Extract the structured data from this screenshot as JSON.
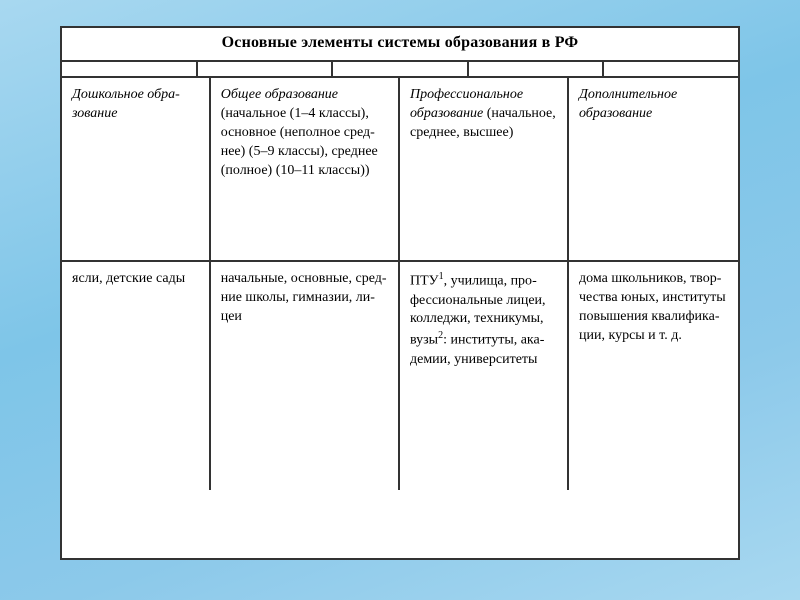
{
  "table": {
    "title": "Основные элементы системы образования в РФ",
    "columns": 4,
    "connector_segments": 5,
    "border_color": "#333333",
    "background_color": "#ffffff",
    "font_family": "Georgia, 'Times New Roman', serif",
    "title_fontsize": 16,
    "cell_fontsize": 14,
    "column_widths_pct": [
      22,
      28,
      25,
      25
    ],
    "row1": {
      "c1": {
        "italic": "Дошколь­ное обра­зование",
        "rest": ""
      },
      "c2": {
        "italic": "Общее образо­вание",
        "rest": " (началь­ное (1–4 клас­сы), основное (неполное сред­нее) (5–9 клас­сы), среднее (полное) (10–11 классы))"
      },
      "c3": {
        "italic": "Профессио­нальное образование",
        "rest": " (начальное, среднее, высшее)"
      },
      "c4": {
        "italic": "Дополни­тельное образование",
        "rest": ""
      }
    },
    "row2": {
      "c1": "ясли, детские сады",
      "c2": "начальные, ос­новные, сред­ние школы, гимназии, ли­цеи",
      "c3_pre": "ПТУ",
      "c3_sup1": "1",
      "c3_mid": ", учи­лища, про­фессиональ­ные лицеи, колледжи, техникумы, вузы",
      "c3_sup2": "2",
      "c3_post": ": инс­титуты, ака­демии, уни­верситеты",
      "c4": "дома школь­ников, твор­чества юных, институты повышения квалифика­ции, курсы и т. д."
    }
  },
  "page": {
    "bg_gradient": [
      "#a8d8f0",
      "#7ec5e8",
      "#8cc9ea",
      "#a8d8f0"
    ]
  }
}
